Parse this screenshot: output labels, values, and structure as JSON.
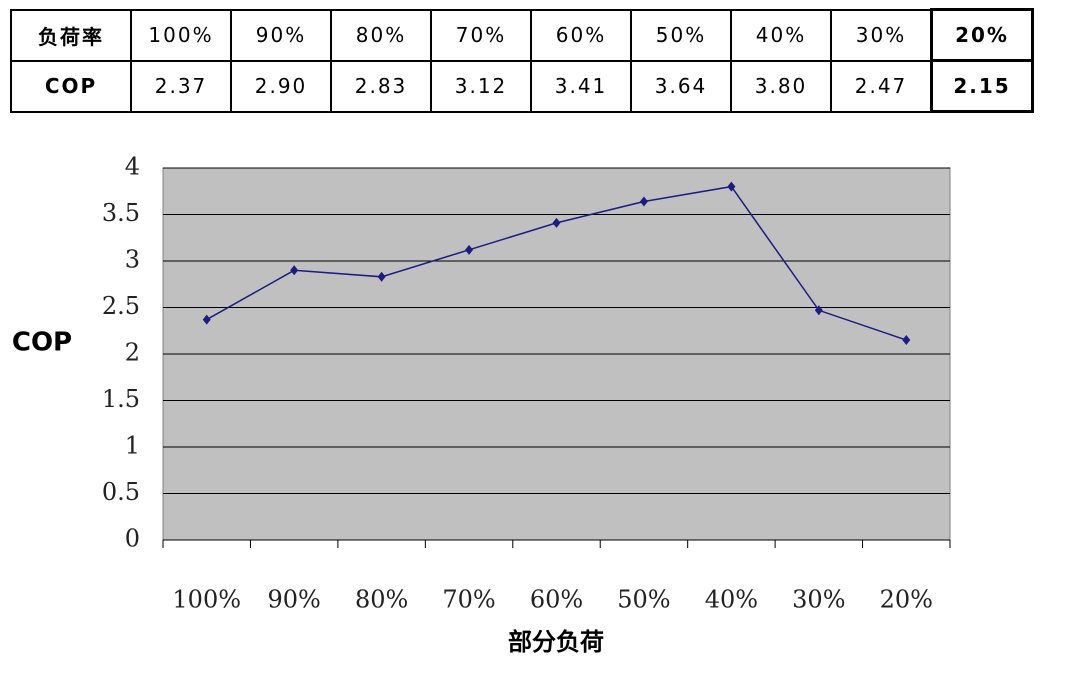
{
  "table": {
    "rows": [
      [
        "负荷率",
        "100%",
        "90%",
        "80%",
        "70%",
        "60%",
        "50%",
        "40%",
        "30%",
        "20%"
      ],
      [
        "COP",
        "2.37",
        "2.90",
        "2.83",
        "3.12",
        "3.41",
        "3.64",
        "3.80",
        "2.47",
        "2.15"
      ]
    ]
  },
  "chart_data": {
    "type": "line",
    "y_label": "COP",
    "x_label": "部分负荷",
    "categories": [
      "100%",
      "90%",
      "80%",
      "70%",
      "60%",
      "50%",
      "40%",
      "30%",
      "20%"
    ],
    "values": [
      2.37,
      2.9,
      2.83,
      3.12,
      3.41,
      3.64,
      3.8,
      2.47,
      2.15
    ],
    "color": "#1c1c82",
    "ylim": [
      0,
      4
    ],
    "yticks": [
      0,
      0.5,
      1,
      1.5,
      2,
      2.5,
      3,
      3.5,
      4
    ],
    "grid": true
  }
}
